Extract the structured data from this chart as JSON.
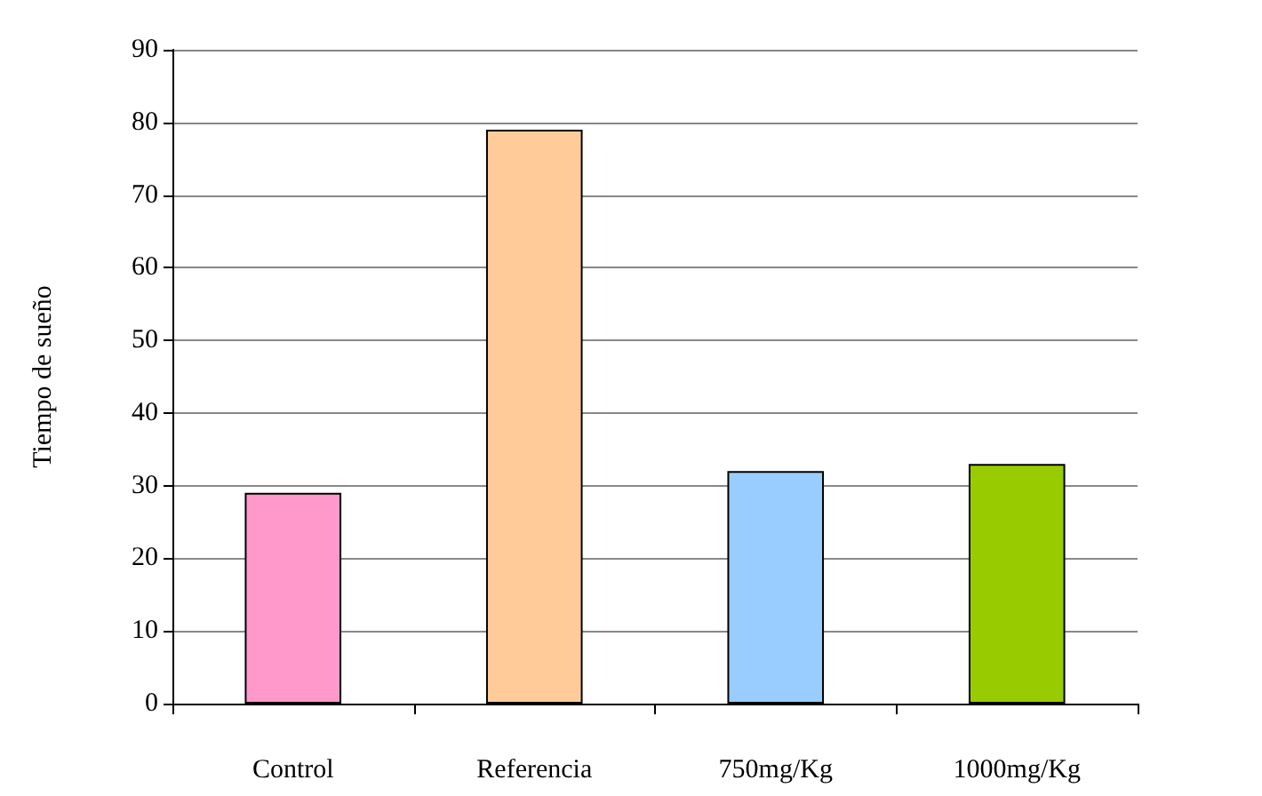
{
  "chart_data": {
    "type": "bar",
    "ylabel": "Tiempo de sueño",
    "categories": [
      "Control",
      "Referencia",
      "750mg/Kg",
      "1000mg/Kg"
    ],
    "values": [
      29,
      79,
      32,
      33
    ],
    "colors": [
      "#ff99cc",
      "#ffcc99",
      "#99ccff",
      "#99cc00"
    ],
    "ylim": [
      0,
      90
    ],
    "yticks": [
      0,
      10,
      20,
      30,
      40,
      50,
      60,
      70,
      80,
      90
    ],
    "grid": "y"
  }
}
